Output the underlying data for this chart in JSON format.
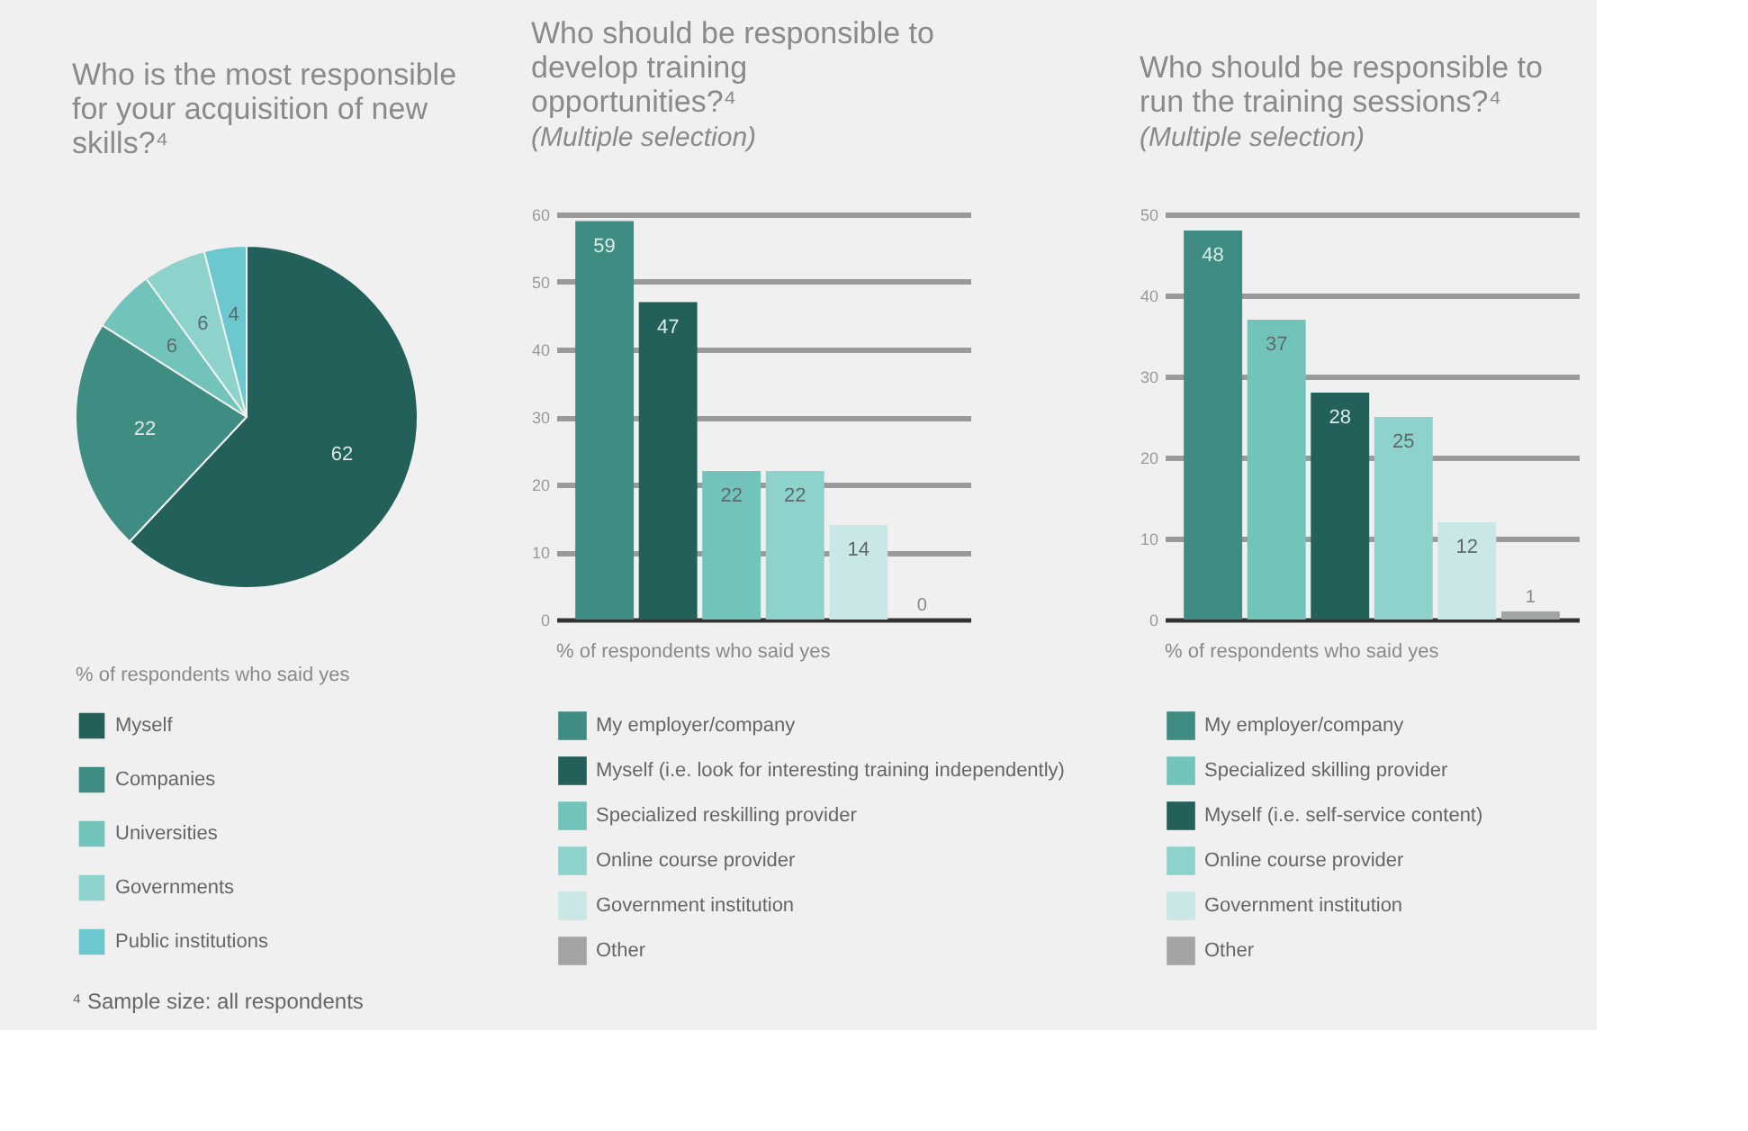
{
  "chart_data": [
    {
      "type": "pie",
      "title": "Who is the most responsible for your acquisition of new skills?⁴",
      "categories": [
        "Myself",
        "Companies",
        "Universities",
        "Governments",
        "Public institutions"
      ],
      "values": [
        62,
        22,
        6,
        6,
        4
      ],
      "colors": [
        "#23605a",
        "#3e8c82",
        "#72c4bb",
        "#8dd3cc",
        "#6bc8cf"
      ],
      "data_labels": true,
      "legend": "bottom",
      "annotations": [
        "% of respondents who said yes",
        "⁴ Sample size: all respondents"
      ]
    },
    {
      "type": "bar",
      "title": "Who should be responsible to develop training opportunities?⁴",
      "subtitle": "(Multiple selection)",
      "categories": [
        null,
        null,
        null,
        null,
        null,
        null
      ],
      "series": [
        {
          "name": "My employer/company",
          "color": "#3e8c82",
          "values": [
            59,
            null,
            null,
            null,
            null,
            null
          ]
        },
        {
          "name": "Myself (i.e. look for interesting training independently)",
          "color": "#23605a",
          "values": [
            null,
            47,
            null,
            null,
            null,
            null
          ]
        },
        {
          "name": "Specialized reskilling provider",
          "color": "#72c4bb",
          "values": [
            null,
            null,
            22,
            null,
            null,
            null
          ]
        },
        {
          "name": "Online course provider",
          "color": "#8dd3cc",
          "values": [
            null,
            null,
            null,
            22,
            null,
            null
          ]
        },
        {
          "name": "Government institution",
          "color": "#c9e8e5",
          "values": [
            null,
            null,
            null,
            null,
            14,
            null
          ]
        },
        {
          "name": "Other",
          "color": "#a3a5a4",
          "values": [
            null,
            null,
            null,
            null,
            null,
            0
          ]
        }
      ],
      "ylim": [
        0,
        60
      ],
      "yticks": [
        0,
        10,
        20,
        30,
        40,
        50,
        60
      ],
      "grid": "y",
      "tick_labels": "y",
      "data_labels": true,
      "legend": "bottom",
      "annotations": [
        "% of respondents who said yes"
      ]
    },
    {
      "type": "bar",
      "title": "Who should be responsible to run the training sessions?⁴",
      "subtitle": "(Multiple selection)",
      "categories": [
        null,
        null,
        null,
        null,
        null,
        null
      ],
      "series": [
        {
          "name": "My employer/company",
          "color": "#3e8c82",
          "values": [
            48,
            null,
            null,
            null,
            null,
            null
          ]
        },
        {
          "name": "Specialized skilling provider",
          "color": "#72c4bb",
          "values": [
            null,
            37,
            null,
            null,
            null,
            null
          ]
        },
        {
          "name": "Myself (i.e. self-service content)",
          "color": "#23605a",
          "values": [
            null,
            null,
            28,
            null,
            null,
            null
          ]
        },
        {
          "name": "Online course provider",
          "color": "#8dd3cc",
          "values": [
            null,
            null,
            null,
            25,
            null,
            null
          ]
        },
        {
          "name": "Government institution",
          "color": "#c9e8e5",
          "values": [
            null,
            null,
            null,
            null,
            12,
            null
          ]
        },
        {
          "name": "Other",
          "color": "#a3a5a4",
          "values": [
            null,
            null,
            null,
            null,
            null,
            1
          ]
        }
      ],
      "ylim": [
        0,
        50
      ],
      "yticks": [
        0,
        10,
        20,
        30,
        40,
        50
      ],
      "grid": "y",
      "tick_labels": "y",
      "data_labels": true,
      "legend": "bottom",
      "annotations": [
        "% of respondents who said yes"
      ]
    }
  ]
}
